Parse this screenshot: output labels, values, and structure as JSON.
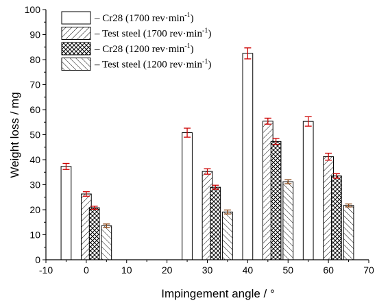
{
  "chart_data": {
    "type": "bar",
    "xlabel": "Impingement angle / °",
    "ylabel": "Weight loss / mg",
    "xlim": [
      -10,
      70
    ],
    "ylim": [
      0,
      100
    ],
    "xticks": [
      -10,
      0,
      10,
      20,
      30,
      40,
      50,
      60,
      70
    ],
    "yticks": [
      0,
      10,
      20,
      30,
      40,
      50,
      60,
      70,
      80,
      90,
      100
    ],
    "legend_position": "top-left",
    "grid": false,
    "categories": [
      0,
      30,
      45,
      60
    ],
    "series": [
      {
        "name": "– Cr28 (1700 rev·min",
        "name_sup": "-1",
        "name_close": ")",
        "pattern": "solid-white",
        "x": [
          -5,
          25,
          40,
          55
        ],
        "values": [
          37.3,
          50.8,
          82.5,
          55.3
        ],
        "errors": [
          1.2,
          1.8,
          2.2,
          1.9
        ],
        "error_color": "#cc0000"
      },
      {
        "name": "– Test steel (1700 rev·min",
        "name_sup": "-1",
        "name_close": ")",
        "pattern": "diagonal-forward",
        "x": [
          0,
          30,
          45,
          60
        ],
        "values": [
          26.3,
          35.3,
          55.4,
          41.2
        ],
        "errors": [
          0.9,
          1.1,
          1.2,
          1.4
        ],
        "error_color": "#cc0000"
      },
      {
        "name": "– Cr28 (1200 rev·min",
        "name_sup": "-1",
        "name_close": ")",
        "pattern": "cross-hatch",
        "x": [
          2,
          32,
          47,
          62
        ],
        "values": [
          20.8,
          29.0,
          47.3,
          33.5
        ],
        "errors": [
          0.6,
          0.8,
          1.2,
          0.9
        ],
        "error_color": "#cc0000"
      },
      {
        "name": "– Test steel (1200 rev·min",
        "name_sup": "-1",
        "name_close": ")",
        "pattern": "diagonal-back",
        "x": [
          5,
          35,
          50,
          65
        ],
        "values": [
          13.6,
          19.1,
          31.2,
          21.7
        ],
        "errors": [
          0.7,
          0.8,
          0.8,
          0.6
        ],
        "error_color": "#8b4513"
      }
    ]
  }
}
